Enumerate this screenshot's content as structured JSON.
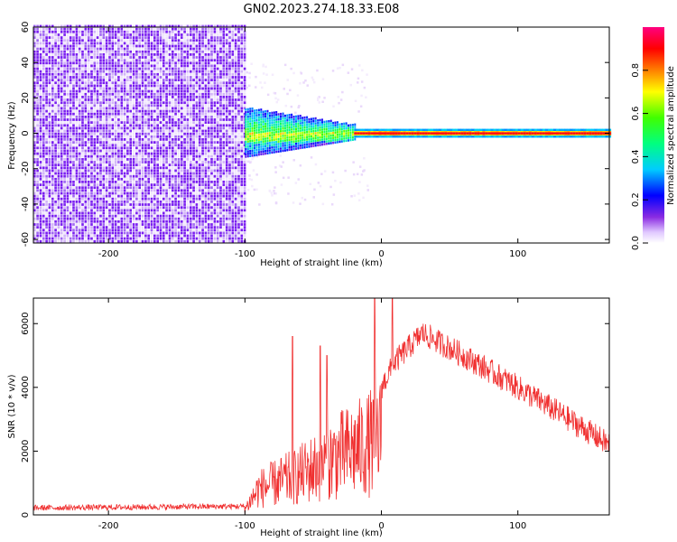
{
  "title": "GN02.2023.274.18.33.E08",
  "chart_data": [
    {
      "type": "heatmap",
      "xlabel": "Height of straight line (km)",
      "ylabel": "Frequency (Hz)",
      "xlim": [
        -255,
        167
      ],
      "ylim": [
        -62,
        60
      ],
      "xticks": [
        -200,
        -100,
        0,
        100
      ],
      "yticks": [
        -60,
        -40,
        -20,
        0,
        20,
        40,
        60
      ],
      "colorbar": {
        "label": "Normalized spectral amplitude",
        "range": [
          0,
          1
        ],
        "ticks": [
          "0.0",
          "0.2",
          "0.4",
          "0.6",
          "0.8"
        ]
      },
      "regions": [
        {
          "x": [
            -255,
            -100
          ],
          "freq": [
            -62,
            60
          ],
          "amplitude": [
            0.0,
            0.15
          ]
        },
        {
          "x": [
            -100,
            -20
          ],
          "freq": [
            -15,
            8
          ],
          "amplitude": [
            0.2,
            0.6
          ]
        },
        {
          "x": [
            -20,
            167
          ],
          "freq": [
            -2,
            2
          ],
          "amplitude": [
            0.7,
            0.95
          ]
        }
      ]
    },
    {
      "type": "line",
      "xlabel": "Height of straight line (km)",
      "ylabel": "SNR (10 * v/v)",
      "xlim": [
        -255,
        167
      ],
      "ylim": [
        0,
        6800
      ],
      "xticks": [
        -200,
        -100,
        0,
        100
      ],
      "yticks": [
        0,
        2000,
        4000,
        6000
      ],
      "color": "#f03030",
      "envelope": [
        {
          "x": -255,
          "y": 250
        },
        {
          "x": -100,
          "y": 300
        },
        {
          "x": -90,
          "y": 1300
        },
        {
          "x": -60,
          "y": 2000
        },
        {
          "x": -30,
          "y": 3000
        },
        {
          "x": -10,
          "y": 3500
        },
        {
          "x": 0,
          "y": 4000
        },
        {
          "x": 10,
          "y": 4800
        },
        {
          "x": 30,
          "y": 5700
        },
        {
          "x": 60,
          "y": 5000
        },
        {
          "x": 100,
          "y": 4000
        },
        {
          "x": 130,
          "y": 3200
        },
        {
          "x": 167,
          "y": 2200
        }
      ],
      "spikes": [
        {
          "x": -65,
          "y": 5600
        },
        {
          "x": -45,
          "y": 5300
        },
        {
          "x": -40,
          "y": 5000
        },
        {
          "x": -5,
          "y": 6800
        },
        {
          "x": 8,
          "y": 6800
        }
      ]
    }
  ]
}
